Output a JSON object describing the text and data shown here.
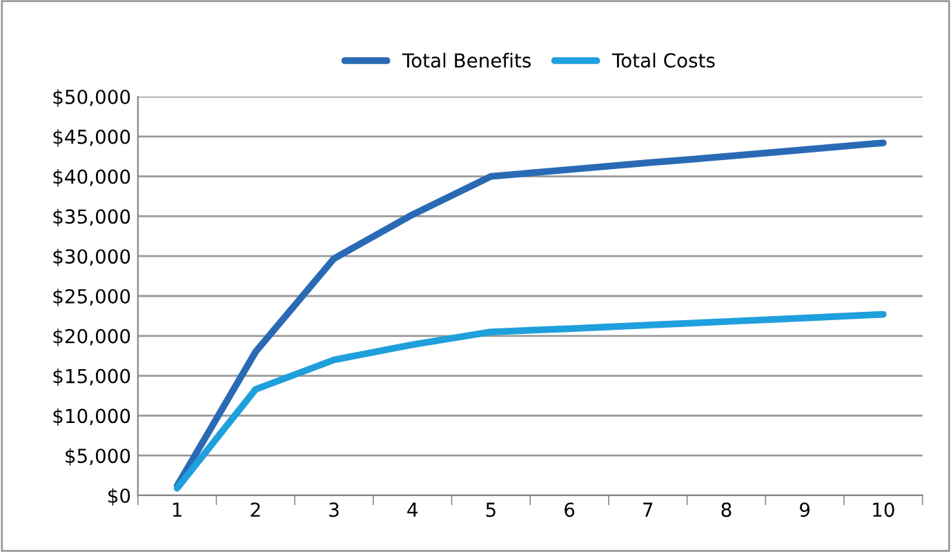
{
  "chart_data": {
    "type": "line",
    "categories": [
      "1",
      "2",
      "3",
      "4",
      "5",
      "6",
      "7",
      "8",
      "9",
      "10"
    ],
    "series": [
      {
        "name": "Total Benefits",
        "color": "#2a6ab5",
        "values": [
          1200,
          18000,
          29700,
          35200,
          40000,
          40850,
          41700,
          42500,
          43350,
          44200
        ]
      },
      {
        "name": "Total Costs",
        "color": "#1fa0dc",
        "values": [
          900,
          13300,
          17000,
          18900,
          20500,
          20900,
          21350,
          21800,
          22250,
          22700
        ]
      }
    ],
    "ylim": [
      0,
      50000
    ],
    "yticks": [
      {
        "value": 0,
        "label": "$0"
      },
      {
        "value": 5000,
        "label": "$5,000"
      },
      {
        "value": 10000,
        "label": "$10,000"
      },
      {
        "value": 15000,
        "label": "$15,000"
      },
      {
        "value": 20000,
        "label": "$20,000"
      },
      {
        "value": 25000,
        "label": "$25,000"
      },
      {
        "value": 30000,
        "label": "$30,000"
      },
      {
        "value": 35000,
        "label": "$35,000"
      },
      {
        "value": 40000,
        "label": "$40,000"
      },
      {
        "value": 45000,
        "label": "$45,000"
      },
      {
        "value": 50000,
        "label": "$50,000"
      }
    ],
    "grid": "y",
    "legend": "top",
    "marker": "none",
    "line_style": "solid"
  }
}
